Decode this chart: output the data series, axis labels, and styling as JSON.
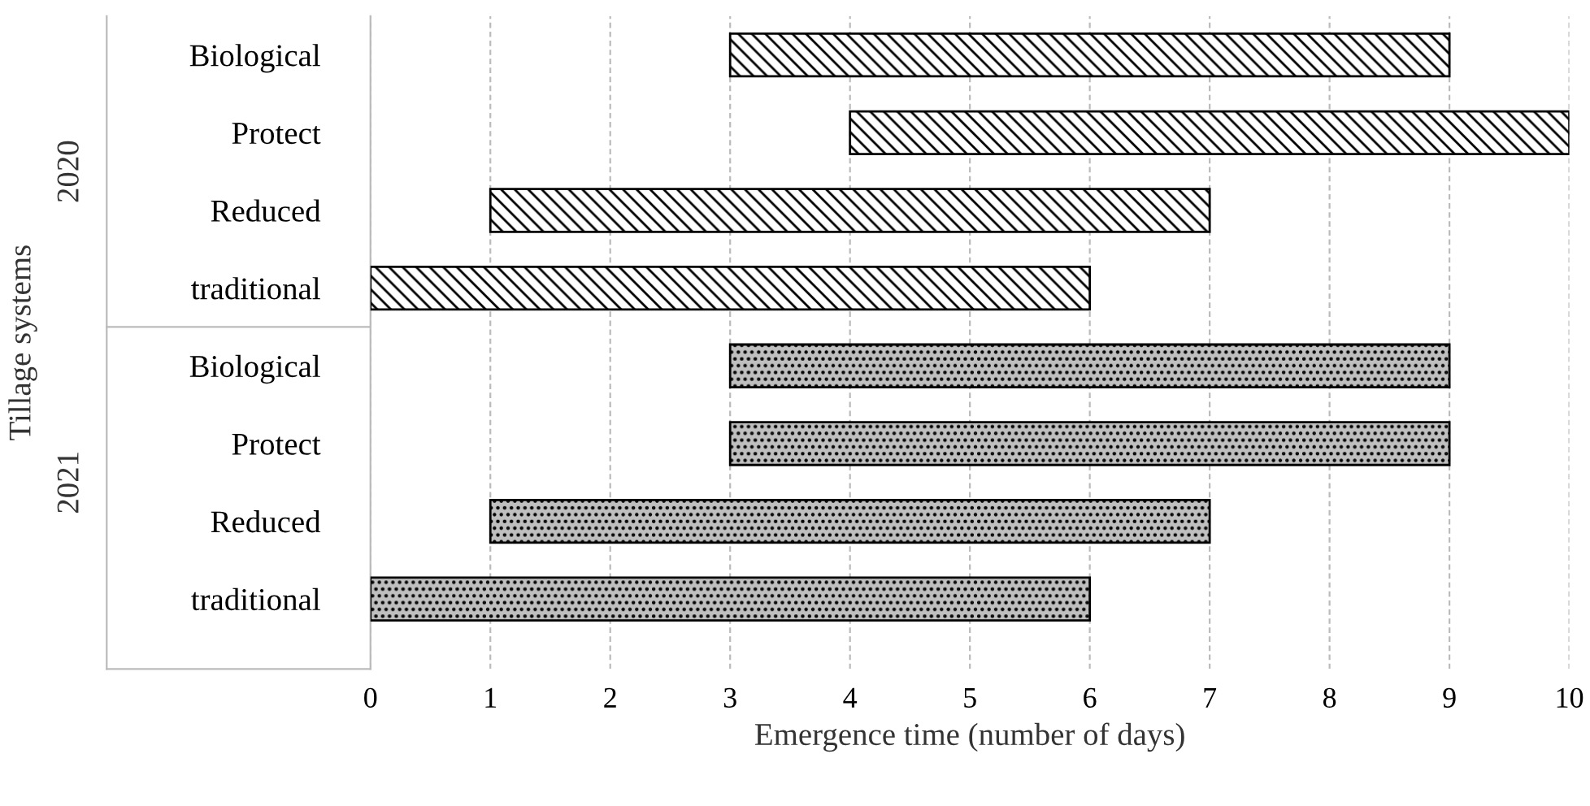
{
  "chart_data": {
    "type": "bar",
    "orientation": "horizontal",
    "xlabel": "Emergence time (number of days)",
    "ylabel": "Tillage systems",
    "categories": [
      "Biological",
      "Protect",
      "Reduced",
      "traditional",
      "Biological",
      "Protect",
      "Reduced",
      "traditional"
    ],
    "series": [
      {
        "color": "#ffffff",
        "values": [
          6,
          6,
          6,
          6,
          null,
          null,
          null,
          null
        ],
        "base": [
          3,
          4,
          1,
          0,
          null,
          null,
          null,
          null
        ]
      },
      {
        "color": "#bfbfbf",
        "values": [
          null,
          null,
          null,
          null,
          6,
          6,
          6,
          6
        ],
        "base": [
          null,
          null,
          null,
          null,
          3,
          3,
          1,
          0
        ]
      }
    ],
    "annotations": [
      "2020",
      "2021"
    ],
    "xlim": [
      0,
      10
    ],
    "xticks": [
      0,
      1,
      2,
      3,
      4,
      5,
      6,
      7,
      8,
      9,
      10
    ],
    "grid": "x",
    "legend": false
  }
}
